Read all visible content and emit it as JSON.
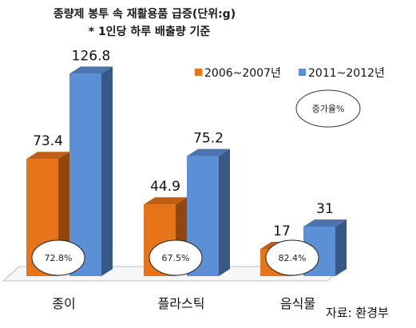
{
  "chart_data": {
    "type": "bar",
    "title": "종량제 봉투 속 재활용품 급증(단위:g)",
    "subtitle": "* 1인당 하루 배출량 기준",
    "categories": [
      "종이",
      "플라스틱",
      "음식물"
    ],
    "series": [
      {
        "name": "2006~2007년",
        "color": "#e8741a",
        "values": [
          73.4,
          44.9,
          17
        ]
      },
      {
        "name": "2011~2012년",
        "color": "#5b8fd6",
        "values": [
          126.8,
          75.2,
          31
        ]
      }
    ],
    "value_labels": [
      [
        "73.4",
        "44.9",
        "17"
      ],
      [
        "126.8",
        "75.2",
        "31"
      ]
    ],
    "growth_labels": [
      "72.8%",
      "67.5%",
      "82.4%"
    ],
    "growth_legend": "증가율%",
    "source": "자료: 환경부",
    "ylim": [
      0,
      140
    ],
    "legend_position": "top-right",
    "grid": false,
    "style": "3d-column"
  }
}
